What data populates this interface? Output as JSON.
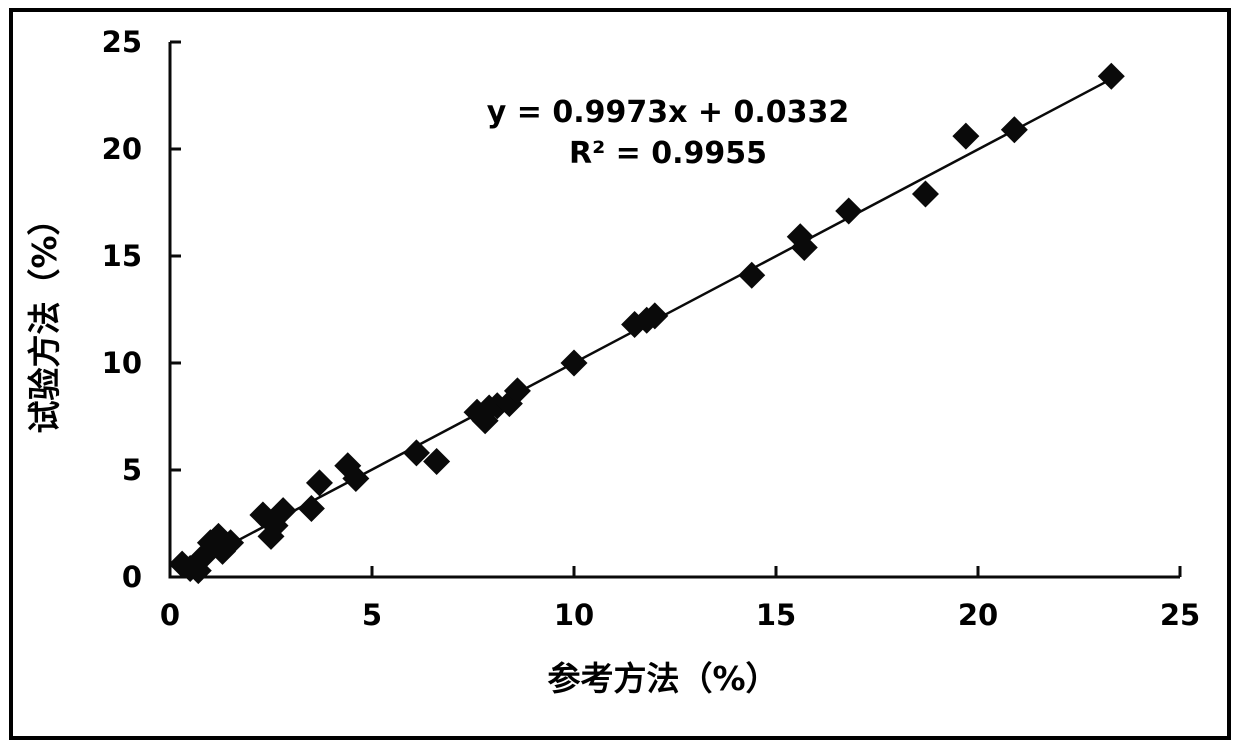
{
  "figure": {
    "background": "#ffffff",
    "border_color": "#000000",
    "ink_color": "#0a0a0a"
  },
  "chart_data": {
    "type": "scatter",
    "title": "",
    "xlabel": "参考方法（%）",
    "ylabel": "试验方法（%）",
    "xlim": [
      0,
      25
    ],
    "ylim": [
      0,
      25
    ],
    "x_ticks": [
      "0",
      "5",
      "10",
      "15",
      "20",
      "25"
    ],
    "y_ticks": [
      "0",
      "5",
      "10",
      "15",
      "20",
      "25"
    ],
    "x_tick_values": [
      0,
      5,
      10,
      15,
      20,
      25
    ],
    "y_tick_values": [
      0,
      5,
      10,
      15,
      20,
      25
    ],
    "grid": false,
    "legend": "none",
    "marker": {
      "shape": "diamond",
      "color": "#0a0a0a",
      "size": 27
    },
    "annotations": {
      "equation": "y = 0.9973x + 0.0332",
      "r_squared": "R² = 0.9955"
    },
    "trendline": {
      "slope": 0.9973,
      "intercept": 0.0332,
      "x_start": 0.3,
      "x_end": 23.45,
      "color": "#0a0a0a",
      "width": 2.5
    },
    "points": [
      [
        0.3,
        0.6
      ],
      [
        0.5,
        0.4
      ],
      [
        0.7,
        0.3
      ],
      [
        0.8,
        0.9
      ],
      [
        1.0,
        1.6
      ],
      [
        1.2,
        1.9
      ],
      [
        1.3,
        1.2
      ],
      [
        1.5,
        1.6
      ],
      [
        2.3,
        2.9
      ],
      [
        2.5,
        1.9
      ],
      [
        2.6,
        2.4
      ],
      [
        2.8,
        3.1
      ],
      [
        3.5,
        3.2
      ],
      [
        3.7,
        4.4
      ],
      [
        4.4,
        5.2
      ],
      [
        4.6,
        4.6
      ],
      [
        6.1,
        5.8
      ],
      [
        6.6,
        5.4
      ],
      [
        7.6,
        7.7
      ],
      [
        7.8,
        7.3
      ],
      [
        7.9,
        7.9
      ],
      [
        8.1,
        8.0
      ],
      [
        8.4,
        8.1
      ],
      [
        8.6,
        8.7
      ],
      [
        10.0,
        10.0
      ],
      [
        11.5,
        11.8
      ],
      [
        11.8,
        12.0
      ],
      [
        12.0,
        12.2
      ],
      [
        14.4,
        14.1
      ],
      [
        15.6,
        15.9
      ],
      [
        15.7,
        15.4
      ],
      [
        16.8,
        17.1
      ],
      [
        18.7,
        17.9
      ],
      [
        19.7,
        20.6
      ],
      [
        20.9,
        20.9
      ],
      [
        23.3,
        23.4
      ]
    ]
  }
}
